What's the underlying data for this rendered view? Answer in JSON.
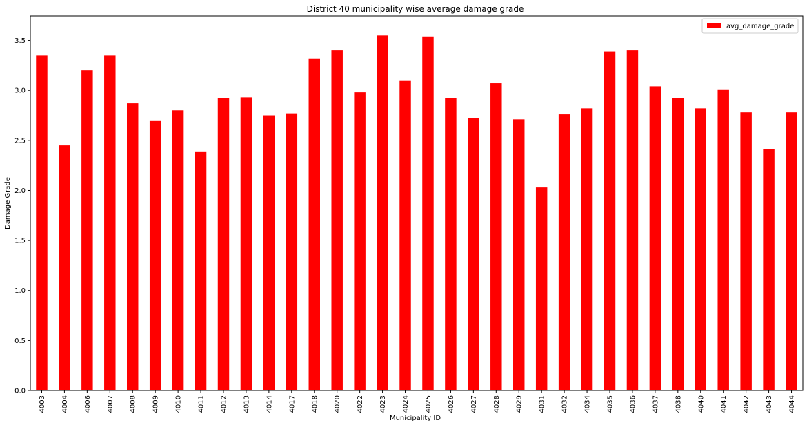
{
  "chart_data": {
    "type": "bar",
    "title": "District 40 municipality wise average damage grade",
    "xlabel": "Municipality ID",
    "ylabel": "Damage Grade",
    "ylim": [
      0,
      3.745
    ],
    "yticks": [
      "0.0",
      "0.5",
      "1.0",
      "1.5",
      "2.0",
      "2.5",
      "3.0",
      "3.5"
    ],
    "categories": [
      "4003",
      "4004",
      "4006",
      "4007",
      "4008",
      "4009",
      "4010",
      "4011",
      "4012",
      "4013",
      "4014",
      "4017",
      "4018",
      "4020",
      "4022",
      "4023",
      "4024",
      "4025",
      "4026",
      "4027",
      "4028",
      "4029",
      "4031",
      "4032",
      "4034",
      "4035",
      "4036",
      "4037",
      "4038",
      "4040",
      "4041",
      "4042",
      "4043",
      "4044"
    ],
    "series": [
      {
        "name": "avg_damage_grade",
        "color": "#ff0000",
        "values": [
          3.35,
          2.45,
          3.2,
          3.35,
          2.87,
          2.7,
          2.8,
          2.39,
          2.92,
          2.93,
          2.75,
          2.77,
          3.32,
          3.4,
          2.98,
          3.55,
          3.1,
          3.54,
          2.92,
          2.72,
          3.07,
          2.71,
          2.03,
          2.76,
          2.82,
          3.39,
          3.4,
          3.04,
          2.92,
          2.82,
          3.01,
          2.78,
          2.41,
          2.78
        ]
      }
    ],
    "legend_position": "top-right",
    "grid": false
  }
}
